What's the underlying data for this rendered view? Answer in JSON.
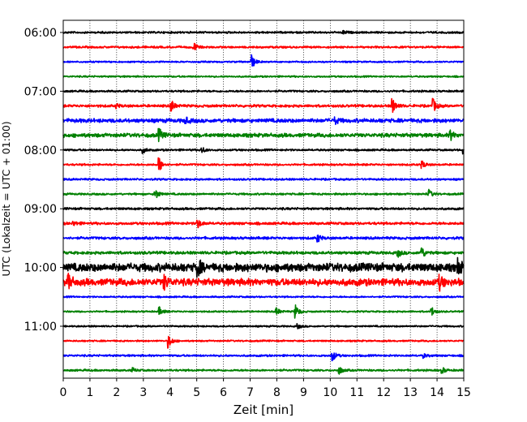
{
  "chart_data": {
    "type": "line",
    "title": "",
    "xlabel": "Zeit  [min]",
    "ylabel": "UTC (Lokalzeit = UTC + 01:00)",
    "xlim": [
      0,
      15
    ],
    "xticks": [
      0,
      1,
      2,
      3,
      4,
      5,
      6,
      7,
      8,
      9,
      10,
      11,
      12,
      13,
      14,
      15
    ],
    "grid": "vertical-dotted",
    "ylim_rows": [
      -0.5,
      23.5
    ],
    "yticks": [
      {
        "label": "06:00",
        "row": 0
      },
      {
        "label": "07:00",
        "row": 4
      },
      {
        "label": "08:00",
        "row": 8
      },
      {
        "label": "09:00",
        "row": 12
      },
      {
        "label": "10:00",
        "row": 16
      },
      {
        "label": "11:00",
        "row": 20
      }
    ],
    "color_cycle": [
      "#000000",
      "#ff0000",
      "#0000ff",
      "#008000"
    ],
    "series": [
      {
        "amp": 0.06,
        "events": [
          {
            "t": 10.5,
            "a": 0.12
          }
        ]
      },
      {
        "amp": 0.06,
        "events": [
          {
            "t": 4.9,
            "a": 0.3
          }
        ]
      },
      {
        "amp": 0.05,
        "events": [
          {
            "t": 7.05,
            "a": 0.55
          }
        ]
      },
      {
        "amp": 0.05,
        "events": []
      },
      {
        "amp": 0.06,
        "events": []
      },
      {
        "amp": 0.08,
        "events": [
          {
            "t": 2.0,
            "a": 0.15
          },
          {
            "t": 4.05,
            "a": 0.4
          },
          {
            "t": 12.35,
            "a": 0.5
          },
          {
            "t": 13.85,
            "a": 0.5
          }
        ]
      },
      {
        "amp": 0.12,
        "events": [
          {
            "t": 4.6,
            "a": 0.2
          },
          {
            "t": 10.2,
            "a": 0.2
          }
        ]
      },
      {
        "amp": 0.12,
        "events": [
          {
            "t": 3.6,
            "a": 0.4
          },
          {
            "t": 14.5,
            "a": 0.35
          }
        ]
      },
      {
        "amp": 0.06,
        "events": [
          {
            "t": 3.0,
            "a": 0.2
          },
          {
            "t": 5.2,
            "a": 0.2
          },
          {
            "t": 15.0,
            "a": 0.3
          }
        ]
      },
      {
        "amp": 0.06,
        "events": [
          {
            "t": 3.6,
            "a": 0.5
          },
          {
            "t": 13.45,
            "a": 0.25
          }
        ]
      },
      {
        "amp": 0.06,
        "events": []
      },
      {
        "amp": 0.06,
        "events": [
          {
            "t": 3.45,
            "a": 0.4
          },
          {
            "t": 13.7,
            "a": 0.3
          }
        ]
      },
      {
        "amp": 0.07,
        "events": []
      },
      {
        "amp": 0.08,
        "events": [
          {
            "t": 0.4,
            "a": 0.15
          },
          {
            "t": 5.05,
            "a": 0.3
          }
        ]
      },
      {
        "amp": 0.08,
        "events": [
          {
            "t": 9.55,
            "a": 0.25
          }
        ]
      },
      {
        "amp": 0.09,
        "events": [
          {
            "t": 13.4,
            "a": 0.5
          },
          {
            "t": 12.55,
            "a": 0.25
          }
        ]
      },
      {
        "amp": 0.26,
        "events": [
          {
            "t": 5.05,
            "a": 0.55
          },
          {
            "t": 14.8,
            "a": 0.45
          }
        ]
      },
      {
        "amp": 0.22,
        "events": [
          {
            "t": 0.2,
            "a": 0.5
          },
          {
            "t": 3.8,
            "a": 0.45
          },
          {
            "t": 14.1,
            "a": 0.45
          }
        ]
      },
      {
        "amp": 0.05,
        "events": []
      },
      {
        "amp": 0.05,
        "events": [
          {
            "t": 3.6,
            "a": 0.3
          },
          {
            "t": 8.0,
            "a": 0.25
          },
          {
            "t": 8.7,
            "a": 0.5
          },
          {
            "t": 13.8,
            "a": 0.35
          }
        ]
      },
      {
        "amp": 0.05,
        "events": [
          {
            "t": 8.8,
            "a": 0.15
          }
        ]
      },
      {
        "amp": 0.05,
        "events": [
          {
            "t": 3.95,
            "a": 0.5
          }
        ]
      },
      {
        "amp": 0.06,
        "events": [
          {
            "t": 10.1,
            "a": 0.35
          },
          {
            "t": 13.5,
            "a": 0.15
          }
        ]
      },
      {
        "amp": 0.06,
        "events": [
          {
            "t": 10.35,
            "a": 0.25
          },
          {
            "t": 2.6,
            "a": 0.15
          },
          {
            "t": 14.2,
            "a": 0.2
          }
        ]
      }
    ]
  }
}
